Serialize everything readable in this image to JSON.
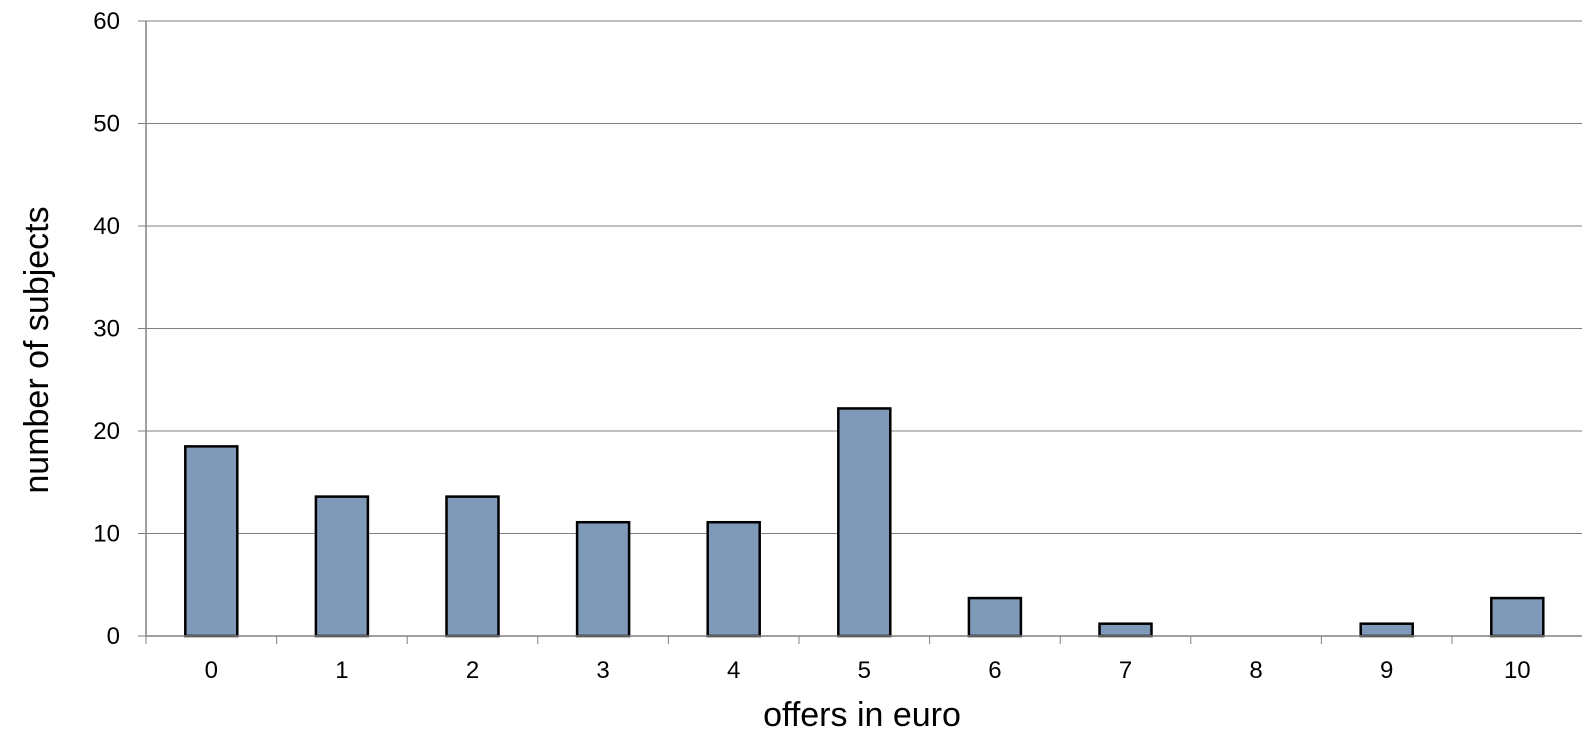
{
  "chart_data": {
    "type": "bar",
    "title": "",
    "xlabel": "offers in euro",
    "ylabel": "number of subjects",
    "categories": [
      "0",
      "1",
      "2",
      "3",
      "4",
      "5",
      "6",
      "7",
      "8",
      "9",
      "10"
    ],
    "values": [
      18.5,
      13.6,
      13.6,
      11.1,
      11.1,
      22.2,
      3.7,
      1.2,
      0,
      1.2,
      3.7
    ],
    "ylim": [
      0,
      60
    ],
    "yticks": [
      "0",
      "10",
      "20",
      "30",
      "40",
      "50",
      "60"
    ],
    "grid": true,
    "legend": "none",
    "colors": {
      "bar_fill": "#7f9ab8",
      "bar_stroke": "#000000",
      "gridline": "#808080",
      "axis": "#808080"
    }
  }
}
